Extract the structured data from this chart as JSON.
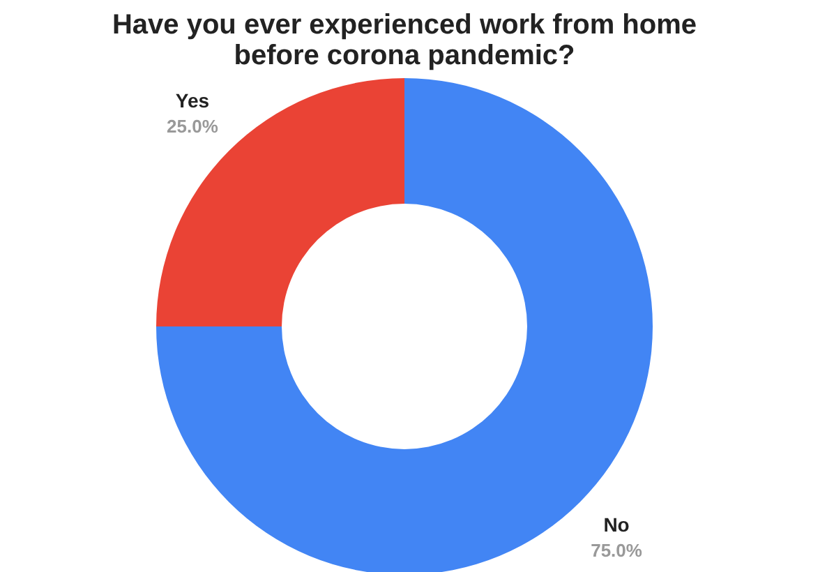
{
  "chart_data": {
    "type": "donut",
    "title": [
      "Have you ever experienced work from home",
      "before corona pandemic?"
    ],
    "categories": [
      "No",
      "Yes"
    ],
    "values": [
      75,
      25
    ],
    "colors": [
      "#4285f4",
      "#ea4335"
    ],
    "value_labels": [
      "75.0%",
      "25.0%"
    ],
    "legend": false
  }
}
